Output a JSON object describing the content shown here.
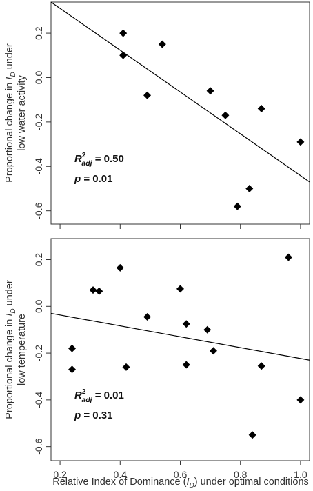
{
  "chart_data": [
    {
      "type": "scatter",
      "ylabel": {
        "line1_prefix": "Proportional change in ",
        "symbol": "I",
        "subscript": "D",
        "line1_suffix": " under",
        "line2": "low water activity"
      },
      "xlim": [
        0.17,
        1.03
      ],
      "ylim": [
        -0.66,
        0.34
      ],
      "yticks": [
        {
          "value": -0.6,
          "label": "-0.6"
        },
        {
          "value": -0.4,
          "label": "-0.4"
        },
        {
          "value": -0.2,
          "label": "-0.2"
        },
        {
          "value": 0.0,
          "label": "0.0"
        },
        {
          "value": 0.2,
          "label": "0.2"
        }
      ],
      "xticks": [
        {
          "value": 0.2,
          "label": ""
        },
        {
          "value": 0.4,
          "label": ""
        },
        {
          "value": 0.6,
          "label": ""
        },
        {
          "value": 0.8,
          "label": ""
        },
        {
          "value": 1.0,
          "label": ""
        }
      ],
      "points": [
        {
          "x": 0.41,
          "y": 0.2
        },
        {
          "x": 0.41,
          "y": 0.1
        },
        {
          "x": 0.49,
          "y": -0.08
        },
        {
          "x": 0.54,
          "y": 0.15
        },
        {
          "x": 0.7,
          "y": -0.06
        },
        {
          "x": 0.75,
          "y": -0.17
        },
        {
          "x": 0.79,
          "y": -0.58
        },
        {
          "x": 0.83,
          "y": -0.5
        },
        {
          "x": 0.87,
          "y": -0.14
        },
        {
          "x": 1.0,
          "y": -0.29
        }
      ],
      "fit_line": {
        "x": [
          0.17,
          1.03
        ],
        "y": [
          0.34,
          -0.47
        ]
      },
      "stats": {
        "r2_label": "R",
        "r2_sup": "2",
        "r2_sub": "adj",
        "r2_value": "= 0.50",
        "p_label": "p",
        "p_value": "= 0.01"
      }
    },
    {
      "type": "scatter",
      "ylabel": {
        "line1_prefix": "Proportional change in ",
        "symbol": "I",
        "subscript": "D",
        "line1_suffix": " under",
        "line2": "low temperature"
      },
      "xlim": [
        0.17,
        1.03
      ],
      "ylim": [
        -0.66,
        0.29
      ],
      "yticks": [
        {
          "value": -0.6,
          "label": "-0.6"
        },
        {
          "value": -0.4,
          "label": "-0.4"
        },
        {
          "value": -0.2,
          "label": "-0.2"
        },
        {
          "value": 0.0,
          "label": "0.0"
        },
        {
          "value": 0.2,
          "label": "0.2"
        }
      ],
      "xticks": [
        {
          "value": 0.2,
          "label": "0.2"
        },
        {
          "value": 0.4,
          "label": "0.4"
        },
        {
          "value": 0.6,
          "label": "0.6"
        },
        {
          "value": 0.8,
          "label": "0.8"
        },
        {
          "value": 1.0,
          "label": "1.0"
        }
      ],
      "points": [
        {
          "x": 0.24,
          "y": -0.18
        },
        {
          "x": 0.24,
          "y": -0.27
        },
        {
          "x": 0.31,
          "y": 0.07
        },
        {
          "x": 0.33,
          "y": 0.065
        },
        {
          "x": 0.4,
          "y": 0.165
        },
        {
          "x": 0.42,
          "y": -0.26
        },
        {
          "x": 0.49,
          "y": -0.045
        },
        {
          "x": 0.6,
          "y": 0.075
        },
        {
          "x": 0.62,
          "y": -0.075
        },
        {
          "x": 0.62,
          "y": -0.25
        },
        {
          "x": 0.69,
          "y": -0.1
        },
        {
          "x": 0.71,
          "y": -0.19
        },
        {
          "x": 0.84,
          "y": -0.55
        },
        {
          "x": 0.87,
          "y": -0.255
        },
        {
          "x": 0.96,
          "y": 0.21
        },
        {
          "x": 1.0,
          "y": -0.4
        }
      ],
      "fit_line": {
        "x": [
          0.17,
          1.03
        ],
        "y": [
          -0.03,
          -0.23
        ]
      },
      "stats": {
        "r2_label": "R",
        "r2_sup": "2",
        "r2_sub": "adj",
        "r2_value": "= 0.01",
        "p_label": "p",
        "p_value": "= 0.31"
      }
    }
  ],
  "xlabel": {
    "prefix": "Relative Index of Dominance (",
    "symbol": "I",
    "subscript": "D",
    "suffix": ") under optimal conditions"
  },
  "colors": {
    "marker": "#000000",
    "line": "#000000",
    "axes": "#333333"
  }
}
